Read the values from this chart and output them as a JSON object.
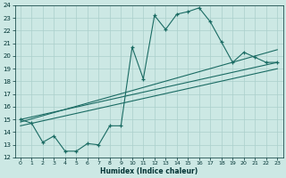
{
  "xlabel": "Humidex (Indice chaleur)",
  "bg_color": "#cce8e4",
  "grid_color": "#aacfcb",
  "line_color": "#1a6b63",
  "xlim": [
    -0.5,
    23.5
  ],
  "ylim": [
    12,
    24
  ],
  "xticks": [
    0,
    1,
    2,
    3,
    4,
    5,
    6,
    7,
    8,
    9,
    10,
    11,
    12,
    13,
    14,
    15,
    16,
    17,
    18,
    19,
    20,
    21,
    22,
    23
  ],
  "yticks": [
    12,
    13,
    14,
    15,
    16,
    17,
    18,
    19,
    20,
    21,
    22,
    23,
    24
  ],
  "line1_x": [
    0,
    1,
    2,
    3,
    4,
    5,
    6,
    7,
    8,
    9,
    10,
    11,
    12,
    13,
    14,
    15,
    16,
    17,
    18,
    19,
    20,
    21,
    22,
    23
  ],
  "line1_y": [
    15.0,
    14.7,
    13.2,
    13.7,
    12.5,
    12.5,
    13.1,
    13.0,
    14.5,
    14.5,
    20.7,
    18.2,
    23.2,
    22.1,
    23.3,
    23.5,
    23.8,
    22.7,
    21.1,
    19.5,
    20.3,
    19.9,
    19.5,
    19.5
  ],
  "line2_x": [
    0,
    23
  ],
  "line2_y": [
    15.0,
    19.5
  ],
  "line3_x": [
    0,
    23
  ],
  "line3_y": [
    14.5,
    19.0
  ],
  "line4_x": [
    0,
    23
  ],
  "line4_y": [
    14.8,
    20.5
  ]
}
